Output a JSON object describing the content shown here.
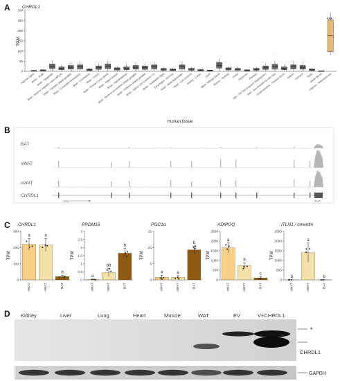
{
  "panels": {
    "A": "A",
    "B": "B",
    "C": "C",
    "D": "D"
  },
  "colors": {
    "sWAT": "#f6cf88",
    "oWAT": "#f3e0a9",
    "BAT": "#8c5a12",
    "highlight_box": "#e8b774",
    "grey_box": "#666666",
    "track": "#b8b8b8"
  },
  "chart_data": [
    {
      "panel": "A",
      "type": "box",
      "title": "CHRDL1",
      "ylabel": "TPM",
      "xlabel": "Human tissue",
      "ylim": [
        0,
        300
      ],
      "yticks": [
        0,
        50,
        100,
        150,
        200,
        250,
        300
      ],
      "significance": "***",
      "categories": [
        "Adrenal Gland",
        "Artery - Aorta",
        "Brain - Amygdala",
        "Brain - Anterior cingulate cortex (BA24)",
        "Brain - Caudate (basal ganglia)",
        "Brain - Cerebellar Hemisphere",
        "Brain - Cerebellum",
        "Brain - Cortex",
        "Brain - Frontal Cortex (BA9)",
        "Brain - Hippocampus",
        "Brain - Hypothalamus",
        "Brain - Nucleus accumbens (basal ganglia)",
        "Brain - Putamen (basal ganglia)",
        "Brain - Spinal cord (cervical c-1)",
        "Brain - Substantia nigra",
        "Esophagus - Mucosa",
        "Heart - Atrial Appendage",
        "Heart - Left Ventricle",
        "Kidney - Cortex",
        "Liver",
        "Minor Salivary Gland",
        "Muscle - Skeletal",
        "Ovary",
        "Pancreas",
        "Pituitary",
        "Skin - Not Sun Exposed (Suprapubic)",
        "Skin - Sun Exposed (Lower leg)",
        "Small Intestine - Terminal Ileum",
        "Spleen",
        "Stomach",
        "Testis",
        "Whole Blood",
        "Adipose - Subcutaneous"
      ],
      "values": [
        3,
        5,
        25,
        15,
        20,
        22,
        8,
        18,
        25,
        12,
        15,
        20,
        18,
        22,
        10,
        8,
        22,
        10,
        6,
        4,
        30,
        12,
        10,
        5,
        10,
        18,
        24,
        15,
        22,
        20,
        8,
        2,
        175
      ]
    },
    {
      "panel": "B",
      "type": "area",
      "tracks": [
        "BAT",
        "sWAT",
        "oWAT"
      ],
      "gene": "CHRDL1",
      "start_label": "ATG",
      "end_label": "TAG"
    },
    {
      "panel": "C",
      "type": "bar",
      "gene": "CHRDL1",
      "ylabel": "TPM",
      "categories": [
        "sWAT",
        "oWAT",
        "BAT"
      ],
      "values": [
        220,
        215,
        20
      ],
      "errors": [
        35,
        40,
        8
      ],
      "ylim": [
        0,
        300
      ],
      "yticks": [
        0,
        100,
        200,
        300
      ],
      "letters": [
        "a",
        "a",
        "b"
      ]
    },
    {
      "panel": "C",
      "type": "bar",
      "gene": "PRDM16",
      "ylabel": "TPM",
      "categories": [
        "sWAT",
        "oWAT",
        "BAT"
      ],
      "values": [
        0.02,
        0.45,
        1.65
      ],
      "errors": [
        0.02,
        0.25,
        0.3
      ],
      "ylim": [
        0,
        3
      ],
      "yticks": [
        0,
        0.5,
        1,
        1.5,
        2,
        2.5,
        3
      ],
      "letters": [
        "a",
        "ab",
        "b"
      ]
    },
    {
      "panel": "C",
      "type": "bar",
      "gene": "PGC1α",
      "ylabel": "TPM",
      "categories": [
        "sWAT",
        "oWAT",
        "BAT"
      ],
      "values": [
        0.8,
        0.8,
        9.3
      ],
      "errors": [
        0.6,
        0.5,
        1.2
      ],
      "ylim": [
        0,
        15
      ],
      "yticks": [
        0,
        5,
        10,
        15
      ],
      "letters": [
        "a",
        "a",
        "b"
      ]
    },
    {
      "panel": "C",
      "type": "bar",
      "gene": "ADIPOQ",
      "ylabel": "TPM",
      "categories": [
        "sWAT",
        "oWAT",
        "BAT"
      ],
      "values": [
        1650,
        730,
        100
      ],
      "errors": [
        250,
        150,
        60
      ],
      "ylim": [
        0,
        2500
      ],
      "yticks": [
        0,
        500,
        1000,
        1500,
        2000,
        2500
      ],
      "letters": [
        "a",
        "b",
        "c"
      ]
    },
    {
      "panel": "C",
      "type": "bar",
      "gene": "ITLN1 / omentin",
      "ylabel": "TPM",
      "categories": [
        "sWAT",
        "oWAT",
        "BAT"
      ],
      "values": [
        2,
        1400,
        2
      ],
      "errors": [
        2,
        500,
        2
      ],
      "ylim": [
        0,
        2500
      ],
      "yticks": [
        0,
        500,
        1000,
        1500,
        2000,
        2500
      ],
      "letters": [
        "b",
        "a",
        "b"
      ]
    },
    {
      "panel": "D",
      "type": "table",
      "lanes": [
        "Kidney",
        "Liver",
        "Lung",
        "Heart",
        "Muscle",
        "WAT",
        "EV",
        "V+CHRDL1"
      ],
      "band_labels": [
        "*",
        "CHRDL1",
        "GAPDH"
      ]
    }
  ]
}
